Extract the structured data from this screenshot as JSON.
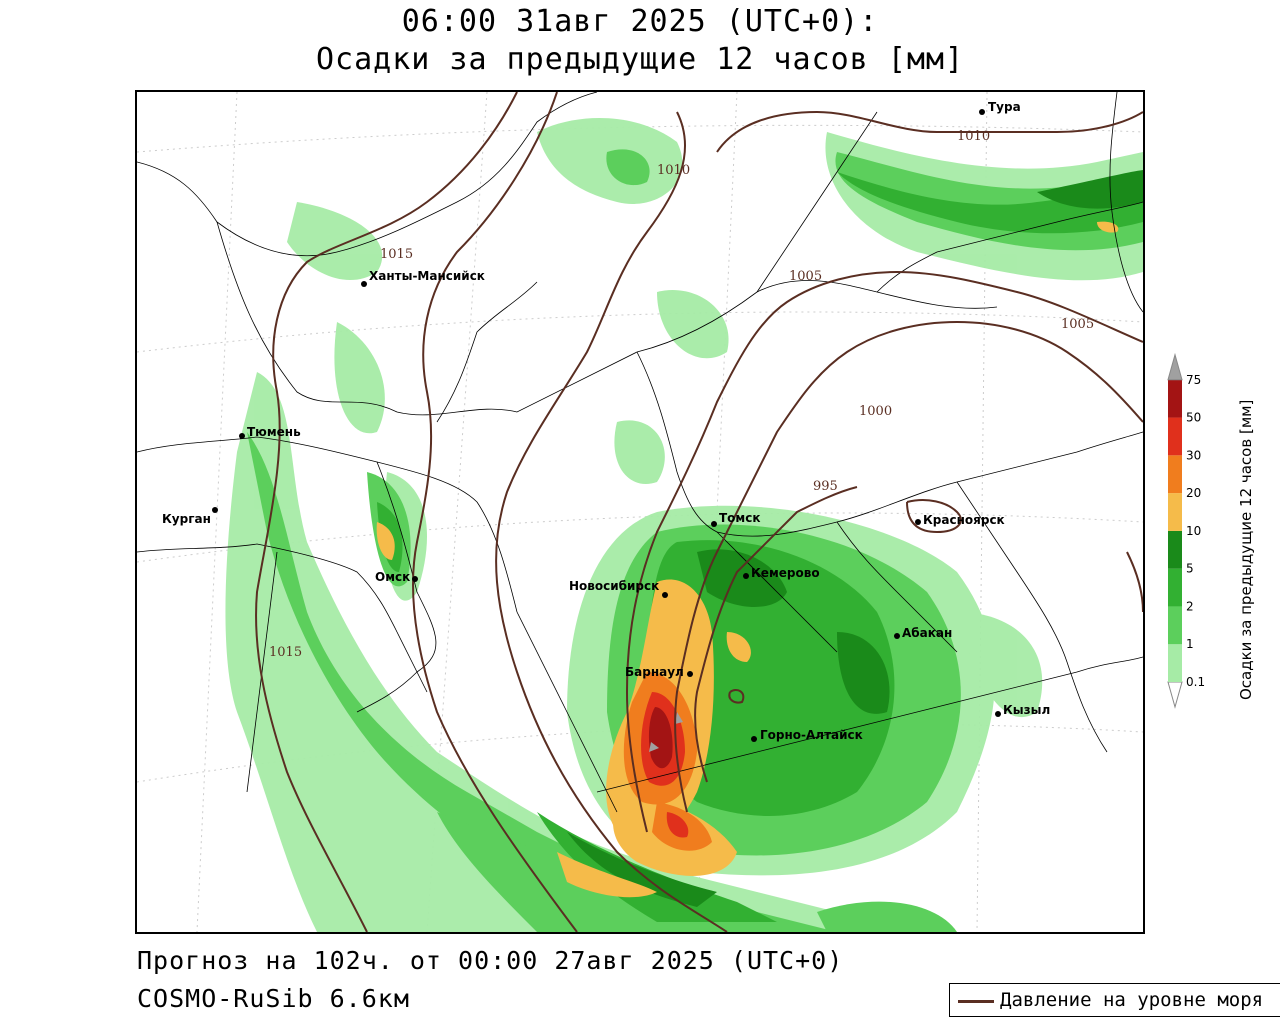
{
  "title": {
    "line1": "06:00 31авг 2025 (UTC+0):",
    "line2": "Осадки за предыдущие 12 часов [мм]"
  },
  "footer": {
    "forecast": "Прогноз на 102ч. от 00:00 27авг 2025 (UTC+0)",
    "model": "COSMO-RuSib 6.6км"
  },
  "legend": {
    "pressure_label": "Давление на уровне моря",
    "pressure_color": "#5a2e22"
  },
  "colorbar": {
    "title": "Осадки за предыдущие 12 часов [мм]",
    "levels": [
      "0.1",
      "1",
      "2",
      "5",
      "10",
      "20",
      "30",
      "50",
      "75"
    ],
    "colors": [
      "#ffffff",
      "#a6eba6",
      "#5ccf5c",
      "#32b032",
      "#1a8a1a",
      "#f5bb4a",
      "#f07d1e",
      "#e0301c",
      "#a31414",
      "#a0a0a0"
    ]
  },
  "cities": [
    {
      "name": "Тура"
    },
    {
      "name": "Ханты-Мансийск"
    },
    {
      "name": "Тюмень"
    },
    {
      "name": "Курган"
    },
    {
      "name": "Омск"
    },
    {
      "name": "Томск"
    },
    {
      "name": "Красноярск"
    },
    {
      "name": "Кемерово"
    },
    {
      "name": "Новосибирск"
    },
    {
      "name": "Абакан"
    },
    {
      "name": "Барнаул"
    },
    {
      "name": "Горно-Алтайск"
    },
    {
      "name": "Кызыл"
    }
  ],
  "isobars": [
    "1010",
    "1010",
    "1015",
    "1005",
    "1005",
    "1000",
    "995",
    "1015"
  ]
}
